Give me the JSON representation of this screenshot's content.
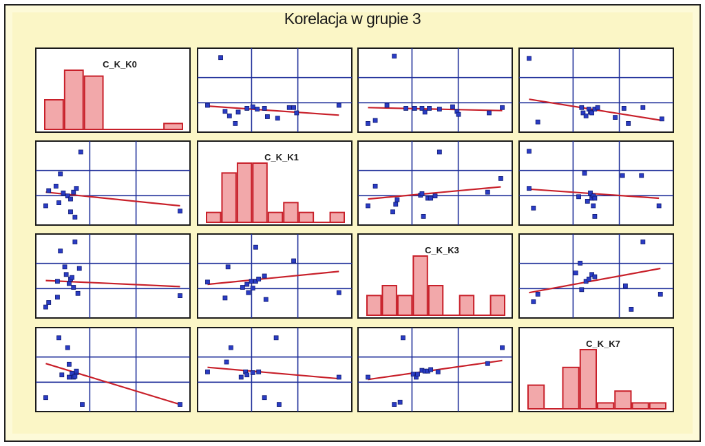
{
  "title": "Korelacja w grupie 3",
  "chart_data": {
    "type": "scatter",
    "layout": "scatterplot-matrix",
    "title": "Korelacja w grupie 3",
    "variables": [
      "C_K_K0",
      "C_K_K1",
      "C_K_K3",
      "C_K_K7"
    ],
    "colors": {
      "points": "#2a3cc4",
      "fit_line": "#c8202a",
      "bars": "#f2a8aa",
      "grid": "#1f2f9a",
      "background": "#fbf6c6"
    },
    "histograms": [
      {
        "variable": "C_K_K0",
        "counts": [
          5,
          10,
          9,
          0,
          0,
          0,
          1
        ]
      },
      {
        "variable": "C_K_K1",
        "counts": [
          1,
          5,
          6,
          6,
          1,
          2,
          1,
          0,
          1
        ]
      },
      {
        "variable": "C_K_K3",
        "counts": [
          2,
          3,
          2,
          6,
          3,
          0,
          2,
          0,
          2
        ]
      },
      {
        "variable": "C_K_K7",
        "counts": [
          4,
          0,
          7,
          10,
          1,
          3,
          1,
          1
        ]
      }
    ],
    "scatter_panels": [
      {
        "row": 0,
        "col": 1,
        "points": [
          [
            0.13,
            0.93
          ],
          [
            0.04,
            0.3
          ],
          [
            0.16,
            0.22
          ],
          [
            0.19,
            0.16
          ],
          [
            0.23,
            0.06
          ],
          [
            0.25,
            0.21
          ],
          [
            0.31,
            0.26
          ],
          [
            0.35,
            0.28
          ],
          [
            0.38,
            0.25
          ],
          [
            0.43,
            0.26
          ],
          [
            0.45,
            0.15
          ],
          [
            0.52,
            0.13
          ],
          [
            0.6,
            0.27
          ],
          [
            0.63,
            0.27
          ],
          [
            0.65,
            0.2
          ],
          [
            0.94,
            0.3
          ]
        ],
        "fit": [
          [
            0.04,
            0.29
          ],
          [
            0.94,
            0.17
          ]
        ]
      },
      {
        "row": 0,
        "col": 2,
        "points": [
          [
            0.22,
            0.95
          ],
          [
            0.04,
            0.06
          ],
          [
            0.09,
            0.1
          ],
          [
            0.17,
            0.3
          ],
          [
            0.3,
            0.26
          ],
          [
            0.36,
            0.26
          ],
          [
            0.41,
            0.26
          ],
          [
            0.43,
            0.21
          ],
          [
            0.46,
            0.26
          ],
          [
            0.53,
            0.25
          ],
          [
            0.62,
            0.28
          ],
          [
            0.65,
            0.22
          ],
          [
            0.66,
            0.18
          ],
          [
            0.87,
            0.2
          ],
          [
            0.96,
            0.27
          ]
        ],
        "fit": [
          [
            0.04,
            0.27
          ],
          [
            0.96,
            0.23
          ]
        ]
      },
      {
        "row": 0,
        "col": 3,
        "points": [
          [
            0.04,
            0.92
          ],
          [
            0.1,
            0.08
          ],
          [
            0.4,
            0.27
          ],
          [
            0.41,
            0.2
          ],
          [
            0.43,
            0.16
          ],
          [
            0.45,
            0.25
          ],
          [
            0.46,
            0.21
          ],
          [
            0.47,
            0.2
          ],
          [
            0.49,
            0.25
          ],
          [
            0.51,
            0.27
          ],
          [
            0.63,
            0.14
          ],
          [
            0.69,
            0.26
          ],
          [
            0.72,
            0.06
          ],
          [
            0.82,
            0.27
          ],
          [
            0.95,
            0.12
          ]
        ],
        "fit": [
          [
            0.04,
            0.38
          ],
          [
            0.95,
            0.1
          ]
        ]
      },
      {
        "row": 1,
        "col": 0,
        "points": [
          [
            0.04,
            0.2
          ],
          [
            0.06,
            0.4
          ],
          [
            0.11,
            0.46
          ],
          [
            0.13,
            0.24
          ],
          [
            0.14,
            0.62
          ],
          [
            0.16,
            0.37
          ],
          [
            0.19,
            0.33
          ],
          [
            0.21,
            0.29
          ],
          [
            0.21,
            0.12
          ],
          [
            0.23,
            0.38
          ],
          [
            0.24,
            0.05
          ],
          [
            0.25,
            0.43
          ],
          [
            0.28,
            0.91
          ],
          [
            0.96,
            0.13
          ]
        ],
        "fit": [
          [
            0.04,
            0.38
          ],
          [
            0.96,
            0.2
          ]
        ]
      },
      {
        "row": 1,
        "col": 2,
        "points": [
          [
            0.04,
            0.2
          ],
          [
            0.09,
            0.46
          ],
          [
            0.21,
            0.12
          ],
          [
            0.23,
            0.22
          ],
          [
            0.24,
            0.28
          ],
          [
            0.4,
            0.34
          ],
          [
            0.41,
            0.36
          ],
          [
            0.42,
            0.06
          ],
          [
            0.45,
            0.3
          ],
          [
            0.47,
            0.3
          ],
          [
            0.5,
            0.33
          ],
          [
            0.53,
            0.91
          ],
          [
            0.86,
            0.38
          ],
          [
            0.95,
            0.56
          ]
        ],
        "fit": [
          [
            0.04,
            0.29
          ],
          [
            0.95,
            0.45
          ]
        ]
      },
      {
        "row": 1,
        "col": 3,
        "points": [
          [
            0.04,
            0.92
          ],
          [
            0.04,
            0.43
          ],
          [
            0.07,
            0.17
          ],
          [
            0.38,
            0.32
          ],
          [
            0.42,
            0.63
          ],
          [
            0.44,
            0.26
          ],
          [
            0.46,
            0.37
          ],
          [
            0.47,
            0.3
          ],
          [
            0.48,
            0.33
          ],
          [
            0.49,
            0.3
          ],
          [
            0.48,
            0.2
          ],
          [
            0.49,
            0.06
          ],
          [
            0.68,
            0.6
          ],
          [
            0.81,
            0.6
          ],
          [
            0.93,
            0.2
          ]
        ],
        "fit": [
          [
            0.04,
            0.42
          ],
          [
            0.93,
            0.3
          ]
        ]
      },
      {
        "row": 2,
        "col": 0,
        "points": [
          [
            0.04,
            0.09
          ],
          [
            0.06,
            0.15
          ],
          [
            0.12,
            0.43
          ],
          [
            0.12,
            0.22
          ],
          [
            0.14,
            0.83
          ],
          [
            0.17,
            0.62
          ],
          [
            0.18,
            0.52
          ],
          [
            0.2,
            0.4
          ],
          [
            0.21,
            0.46
          ],
          [
            0.22,
            0.48
          ],
          [
            0.23,
            0.35
          ],
          [
            0.24,
            0.95
          ],
          [
            0.26,
            0.27
          ],
          [
            0.27,
            0.6
          ],
          [
            0.96,
            0.24
          ]
        ],
        "fit": [
          [
            0.04,
            0.44
          ],
          [
            0.96,
            0.36
          ]
        ]
      },
      {
        "row": 2,
        "col": 1,
        "points": [
          [
            0.04,
            0.42
          ],
          [
            0.16,
            0.21
          ],
          [
            0.18,
            0.62
          ],
          [
            0.28,
            0.35
          ],
          [
            0.31,
            0.39
          ],
          [
            0.32,
            0.28
          ],
          [
            0.34,
            0.43
          ],
          [
            0.35,
            0.34
          ],
          [
            0.37,
            0.88
          ],
          [
            0.37,
            0.43
          ],
          [
            0.39,
            0.46
          ],
          [
            0.43,
            0.5
          ],
          [
            0.44,
            0.19
          ],
          [
            0.63,
            0.7
          ],
          [
            0.94,
            0.28
          ]
        ],
        "fit": [
          [
            0.04,
            0.39
          ],
          [
            0.94,
            0.56
          ]
        ]
      },
      {
        "row": 2,
        "col": 3,
        "points": [
          [
            0.07,
            0.16
          ],
          [
            0.1,
            0.26
          ],
          [
            0.36,
            0.54
          ],
          [
            0.39,
            0.67
          ],
          [
            0.4,
            0.32
          ],
          [
            0.43,
            0.43
          ],
          [
            0.45,
            0.46
          ],
          [
            0.47,
            0.52
          ],
          [
            0.49,
            0.49
          ],
          [
            0.7,
            0.37
          ],
          [
            0.74,
            0.06
          ],
          [
            0.82,
            0.95
          ],
          [
            0.94,
            0.26
          ]
        ],
        "fit": [
          [
            0.04,
            0.28
          ],
          [
            0.94,
            0.6
          ]
        ]
      },
      {
        "row": 3,
        "col": 0,
        "points": [
          [
            0.04,
            0.13
          ],
          [
            0.13,
            0.92
          ],
          [
            0.15,
            0.43
          ],
          [
            0.19,
            0.79
          ],
          [
            0.2,
            0.57
          ],
          [
            0.2,
            0.4
          ],
          [
            0.22,
            0.45
          ],
          [
            0.23,
            0.4
          ],
          [
            0.24,
            0.41
          ],
          [
            0.25,
            0.46
          ],
          [
            0.25,
            0.48
          ],
          [
            0.29,
            0.04
          ],
          [
            0.96,
            0.04
          ]
        ],
        "fit": [
          [
            0.04,
            0.58
          ],
          [
            0.96,
            0.04
          ]
        ]
      },
      {
        "row": 3,
        "col": 1,
        "points": [
          [
            0.04,
            0.47
          ],
          [
            0.17,
            0.6
          ],
          [
            0.2,
            0.79
          ],
          [
            0.27,
            0.4
          ],
          [
            0.3,
            0.47
          ],
          [
            0.31,
            0.43
          ],
          [
            0.35,
            0.46
          ],
          [
            0.39,
            0.47
          ],
          [
            0.43,
            0.13
          ],
          [
            0.51,
            0.92
          ],
          [
            0.53,
            0.04
          ],
          [
            0.94,
            0.4
          ]
        ],
        "fit": [
          [
            0.04,
            0.53
          ],
          [
            0.94,
            0.38
          ]
        ]
      },
      {
        "row": 3,
        "col": 2,
        "points": [
          [
            0.04,
            0.4
          ],
          [
            0.22,
            0.04
          ],
          [
            0.26,
            0.07
          ],
          [
            0.28,
            0.92
          ],
          [
            0.35,
            0.44
          ],
          [
            0.37,
            0.4
          ],
          [
            0.38,
            0.44
          ],
          [
            0.41,
            0.49
          ],
          [
            0.43,
            0.48
          ],
          [
            0.45,
            0.48
          ],
          [
            0.47,
            0.5
          ],
          [
            0.52,
            0.47
          ],
          [
            0.86,
            0.58
          ],
          [
            0.96,
            0.79
          ]
        ],
        "fit": [
          [
            0.04,
            0.37
          ],
          [
            0.96,
            0.62
          ]
        ]
      }
    ]
  }
}
